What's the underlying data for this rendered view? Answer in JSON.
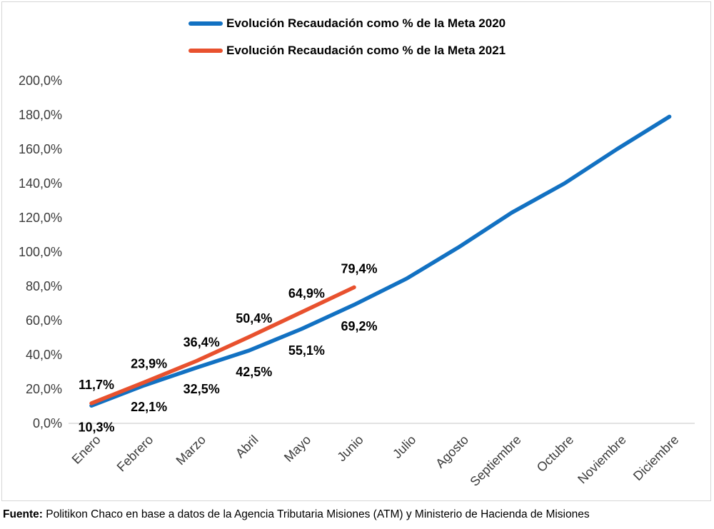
{
  "chart_data": {
    "type": "line",
    "categories": [
      "Enero",
      "Febrero",
      "Marzo",
      "Abril",
      "Mayo",
      "Junio",
      "Julio",
      "Agosto",
      "Septiembre",
      "Octubre",
      "Noviembre",
      "Diciembre"
    ],
    "y_ticks": [
      "0,0%",
      "20,0%",
      "40,0%",
      "60,0%",
      "80,0%",
      "100,0%",
      "120,0%",
      "140,0%",
      "160,0%",
      "180,0%",
      "200,0%"
    ],
    "ylim": [
      0,
      200
    ],
    "grid": false,
    "legend_position": "top",
    "series": [
      {
        "name": "Evolución Recaudación como % de la Meta 2020",
        "color": "#1271c2",
        "label_position": "below",
        "values": [
          10.3,
          22.1,
          32.5,
          42.5,
          55.1,
          69.2,
          84.5,
          103.0,
          123.0,
          140.0,
          160.0,
          179.0
        ],
        "point_labels": [
          "10,3%",
          "22,1%",
          "32,5%",
          "42,5%",
          "55,1%",
          "69,2%"
        ]
      },
      {
        "name": "Evolución Recaudación como % de la Meta 2021",
        "color": "#e8512e",
        "label_position": "above",
        "values": [
          11.7,
          23.9,
          36.4,
          50.4,
          64.9,
          79.4
        ],
        "point_labels": [
          "11,7%",
          "23,9%",
          "36,4%",
          "50,4%",
          "64,9%",
          "79,4%"
        ]
      }
    ]
  },
  "footer": {
    "prefix": "Fuente:",
    "text": "Politikon Chaco en base a datos de la Agencia Tributaria Misiones (ATM) y Ministerio de Hacienda de Misiones"
  }
}
